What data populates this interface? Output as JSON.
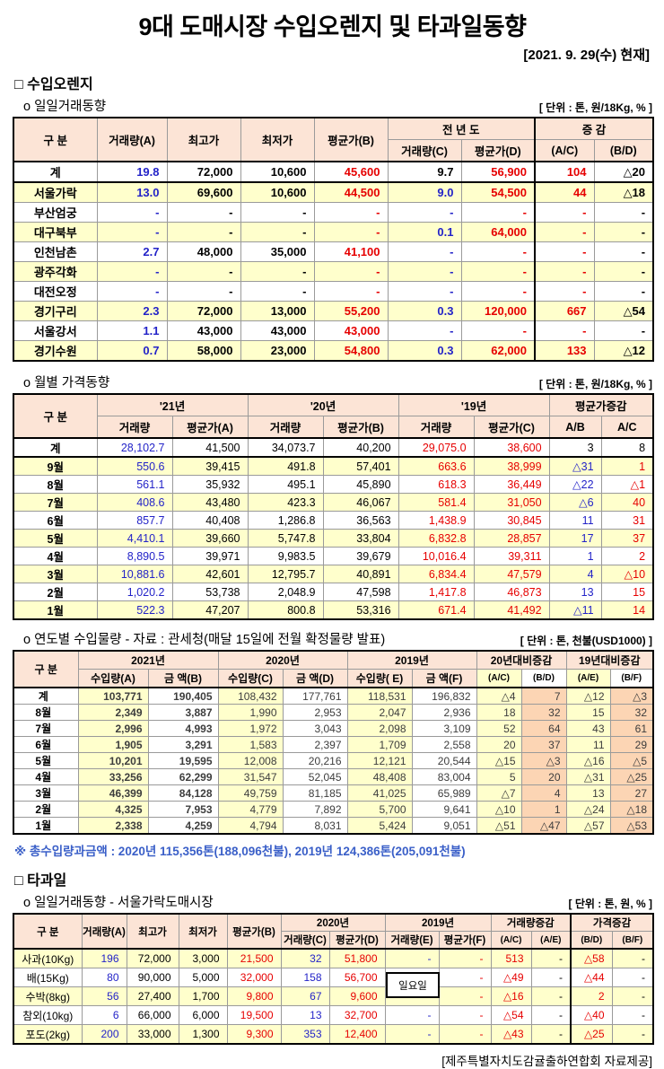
{
  "page": {
    "title": "9대 도매시장 수입오렌지 및 타과일동향",
    "date_note": "[2021. 9. 29(수) 현재]",
    "footer": "[제주특별자치도감귤출하연합회 자료제공]",
    "colors": {
      "accent_blue": "#2323C8",
      "accent_red": "#E60000",
      "table_header_bg": "#FCE4D6",
      "row_alt_bg": "#FFFFCC",
      "change_col_bg": "#FCD5B4",
      "note_blue": "#3A5FC8"
    }
  },
  "section_orange": {
    "heading": "□ 수입오렌지",
    "daily": {
      "subheading": "o 일일거래동향",
      "unit": "[ 단위 : 톤, 원/18Kg, % ]",
      "header": {
        "gubun": "구      분",
        "vol_a": "거래량(A)",
        "high": "최고가",
        "low": "최저가",
        "avg_b": "평균가(B)",
        "prev_year": "전 년 도",
        "vol_c": "거래량(C)",
        "avg_d": "평균가(D)",
        "change": "증    감",
        "ac": "(A/C)",
        "bd": "(B/D)"
      },
      "rows": [
        {
          "label": "계",
          "cells": [
            "19.8",
            "72,000",
            "10,600",
            "45,600",
            "9.7",
            "56,900",
            "104",
            "△20"
          ]
        },
        {
          "label": "서울가락",
          "cells": [
            "13.0",
            "69,600",
            "10,600",
            "44,500",
            "9.0",
            "54,500",
            "44",
            "△18"
          ]
        },
        {
          "label": "부산엄궁",
          "cells": [
            "-",
            "-",
            "-",
            "-",
            "-",
            "-",
            "-",
            "-"
          ]
        },
        {
          "label": "대구북부",
          "cells": [
            "-",
            "-",
            "-",
            "-",
            "0.1",
            "64,000",
            "-",
            "-"
          ]
        },
        {
          "label": "인천남촌",
          "cells": [
            "2.7",
            "48,000",
            "35,000",
            "41,100",
            "-",
            "-",
            "-",
            "-"
          ]
        },
        {
          "label": "광주각화",
          "cells": [
            "-",
            "-",
            "-",
            "-",
            "-",
            "-",
            "-",
            "-"
          ]
        },
        {
          "label": "대전오정",
          "cells": [
            "-",
            "-",
            "-",
            "-",
            "-",
            "-",
            "-",
            "-"
          ]
        },
        {
          "label": "경기구리",
          "cells": [
            "2.3",
            "72,000",
            "13,000",
            "55,200",
            "0.3",
            "120,000",
            "667",
            "△54"
          ]
        },
        {
          "label": "서울강서",
          "cells": [
            "1.1",
            "43,000",
            "43,000",
            "43,000",
            "-",
            "-",
            "-",
            "-"
          ]
        },
        {
          "label": "경기수원",
          "cells": [
            "0.7",
            "58,000",
            "23,000",
            "54,800",
            "0.3",
            "62,000",
            "133",
            "△12"
          ]
        }
      ]
    },
    "monthly": {
      "subheading": "o 월별 가격동향",
      "unit": "[ 단위 : 톤, 원/18Kg, % ]",
      "header": {
        "gubun": "구      분",
        "y21": "'21년",
        "y20": "'20년",
        "y19": "'19년",
        "chg": "평균가증감",
        "vol": "거래량",
        "avg_a": "평균가(A)",
        "avg_b": "평균가(B)",
        "avg_c": "평균가(C)",
        "ab": "A/B",
        "ac": "A/C"
      },
      "rows": [
        {
          "label": "계",
          "cells": [
            "28,102.7",
            "41,500",
            "34,073.7",
            "40,200",
            "29,075.0",
            "38,600",
            "3",
            "8"
          ]
        },
        {
          "label": "9월",
          "cells": [
            "550.6",
            "39,415",
            "491.8",
            "57,401",
            "663.6",
            "38,999",
            "△31",
            "1"
          ]
        },
        {
          "label": "8월",
          "cells": [
            "561.1",
            "35,932",
            "495.1",
            "45,890",
            "618.3",
            "36,449",
            "△22",
            "△1"
          ]
        },
        {
          "label": "7월",
          "cells": [
            "408.6",
            "43,480",
            "423.3",
            "46,067",
            "581.4",
            "31,050",
            "△6",
            "40"
          ]
        },
        {
          "label": "6월",
          "cells": [
            "857.7",
            "40,408",
            "1,286.8",
            "36,563",
            "1,438.9",
            "30,845",
            "11",
            "31"
          ]
        },
        {
          "label": "5월",
          "cells": [
            "4,410.1",
            "39,660",
            "5,747.8",
            "33,804",
            "6,832.8",
            "28,857",
            "17",
            "37"
          ]
        },
        {
          "label": "4월",
          "cells": [
            "8,890.5",
            "39,971",
            "9,983.5",
            "39,679",
            "10,016.4",
            "39,311",
            "1",
            "2"
          ]
        },
        {
          "label": "3월",
          "cells": [
            "10,881.6",
            "42,601",
            "12,795.7",
            "40,891",
            "6,834.4",
            "47,579",
            "4",
            "△10"
          ]
        },
        {
          "label": "2월",
          "cells": [
            "1,020.2",
            "53,738",
            "2,048.9",
            "47,598",
            "1,417.8",
            "46,873",
            "13",
            "15"
          ]
        },
        {
          "label": "1월",
          "cells": [
            "522.3",
            "47,207",
            "800.8",
            "53,316",
            "671.4",
            "41,492",
            "△11",
            "14"
          ]
        }
      ]
    },
    "yearly": {
      "subheading": "o 연도별 수입물량 - 자료 : 관세청(매달 15일에 전월 확정물량 발표)",
      "unit": "[ 단위 : 톤, 천불(USD1000) ]",
      "header": {
        "gubun": "구 분",
        "y2021": "2021년",
        "y2020": "2020년",
        "y2019": "2019년",
        "chg20": "20년대비증감",
        "chg19": "19년대비증감",
        "vol_a": "수입량(A)",
        "amt_b": "금  액(B)",
        "vol_c": "수입량(C)",
        "amt_d": "금  액(D)",
        "vol_e": "수입량( E)",
        "amt_f": "금  액(F)",
        "ac": "(A/C)",
        "bd": "(B/D)",
        "ae": "(A/E)",
        "bf": "(B/F)"
      },
      "rows": [
        {
          "label": "계",
          "cells": [
            "103,771",
            "190,405",
            "108,432",
            "177,761",
            "118,531",
            "196,832",
            "△4",
            "7",
            "△12",
            "△3"
          ]
        },
        {
          "label": "8월",
          "cells": [
            "2,349",
            "3,887",
            "1,990",
            "2,953",
            "2,047",
            "2,936",
            "18",
            "32",
            "15",
            "32"
          ]
        },
        {
          "label": "7월",
          "cells": [
            "2,996",
            "4,993",
            "1,972",
            "3,043",
            "2,098",
            "3,109",
            "52",
            "64",
            "43",
            "61"
          ]
        },
        {
          "label": "6월",
          "cells": [
            "1,905",
            "3,291",
            "1,583",
            "2,397",
            "1,709",
            "2,558",
            "20",
            "37",
            "11",
            "29"
          ]
        },
        {
          "label": "5월",
          "cells": [
            "10,201",
            "19,595",
            "12,008",
            "20,216",
            "12,121",
            "20,544",
            "△15",
            "△3",
            "△16",
            "△5"
          ]
        },
        {
          "label": "4월",
          "cells": [
            "33,256",
            "62,299",
            "31,547",
            "52,045",
            "48,408",
            "83,004",
            "5",
            "20",
            "△31",
            "△25"
          ]
        },
        {
          "label": "3월",
          "cells": [
            "46,399",
            "84,128",
            "49,759",
            "81,185",
            "41,025",
            "65,989",
            "△7",
            "4",
            "13",
            "27"
          ]
        },
        {
          "label": "2월",
          "cells": [
            "4,325",
            "7,953",
            "4,779",
            "7,892",
            "5,700",
            "9,641",
            "△10",
            "1",
            "△24",
            "△18"
          ]
        },
        {
          "label": "1월",
          "cells": [
            "2,338",
            "4,259",
            "4,794",
            "8,031",
            "5,424",
            "9,051",
            "△51",
            "△47",
            "△57",
            "△53"
          ]
        }
      ],
      "note": "※ 총수입량과금액 : 2020년 115,356톤(188,096천불),  2019년 124,386톤(205,091천불)"
    }
  },
  "section_fruit": {
    "heading": "□ 타과일",
    "daily": {
      "subheading": "o 일일거래동향 - 서울가락도매시장",
      "unit": "[ 단위 : 톤, 원, % ]",
      "sunday_note": "일요일",
      "header": {
        "gubun": "구  분",
        "vol_a": "거래량(A)",
        "high": "최고가",
        "low": "최저가",
        "avg_b": "평균가(B)",
        "y2020": "2020년",
        "y2019": "2019년",
        "vol_chg": "거래량증감",
        "price_chg": "가격증감",
        "vol_c": "거래량(C)",
        "avg_d": "평균가(D)",
        "vol_e": "거래량(E)",
        "avg_f": "평균가(F)",
        "ac": "(A/C)",
        "ae": "(A/E)",
        "bd": "(B/D)",
        "bf": "(B/F)"
      },
      "rows": [
        {
          "label": "사과(10Kg)",
          "cells": [
            "196",
            "72,000",
            "3,000",
            "21,500",
            "32",
            "51,800",
            "-",
            "-",
            "513",
            "-",
            "△58",
            "-"
          ]
        },
        {
          "label": "배(15Kg)",
          "cells": [
            "80",
            "90,000",
            "5,000",
            "32,000",
            "158",
            "56,700",
            "",
            "-",
            "△49",
            "-",
            "△44",
            "-"
          ]
        },
        {
          "label": "수박(8kg)",
          "cells": [
            "56",
            "27,400",
            "1,700",
            "9,800",
            "67",
            "9,600",
            "",
            "-",
            "△16",
            "-",
            "2",
            "-"
          ]
        },
        {
          "label": "참외(10kg)",
          "cells": [
            "6",
            "66,000",
            "6,000",
            "19,500",
            "13",
            "32,700",
            "-",
            "-",
            "△54",
            "-",
            "△40",
            "-"
          ]
        },
        {
          "label": "포도(2kg)",
          "cells": [
            "200",
            "33,000",
            "1,300",
            "9,300",
            "353",
            "12,400",
            "-",
            "-",
            "△43",
            "-",
            "△25",
            "-"
          ]
        }
      ]
    }
  }
}
